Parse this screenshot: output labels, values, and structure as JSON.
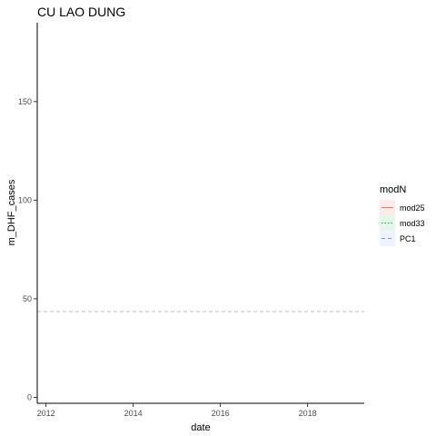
{
  "chart_data": {
    "type": "line",
    "title": "CU LAO DUNG",
    "xlabel": "date",
    "ylabel": "m_DHF_cases",
    "xlim": [
      2011.8,
      2019.3
    ],
    "ylim": [
      -3,
      190
    ],
    "x_ticks": [
      2012,
      2014,
      2016,
      2018
    ],
    "x_tick_labels": [
      "2012",
      "2014",
      "2016",
      "2018"
    ],
    "y_ticks": [
      0,
      50,
      100,
      150
    ],
    "y_tick_labels": [
      "0",
      "50",
      "100",
      "150"
    ],
    "grid": false,
    "reference_line": {
      "y": 43.5,
      "style": "dashed",
      "color": "#bdbdbd"
    },
    "legend": {
      "title": "modN",
      "placement": "right",
      "entries": [
        {
          "label": "mod25",
          "color": "#F8766D",
          "linetype": "solid",
          "fill": "#FDEBEA"
        },
        {
          "label": "mod33",
          "color": "#00BA38",
          "linetype": "dotted",
          "fill": "#E5F7EA"
        },
        {
          "label": "PC1",
          "color": "#619CFF",
          "linetype": "dashed",
          "fill": "#EEF3FF"
        }
      ]
    },
    "series": []
  }
}
